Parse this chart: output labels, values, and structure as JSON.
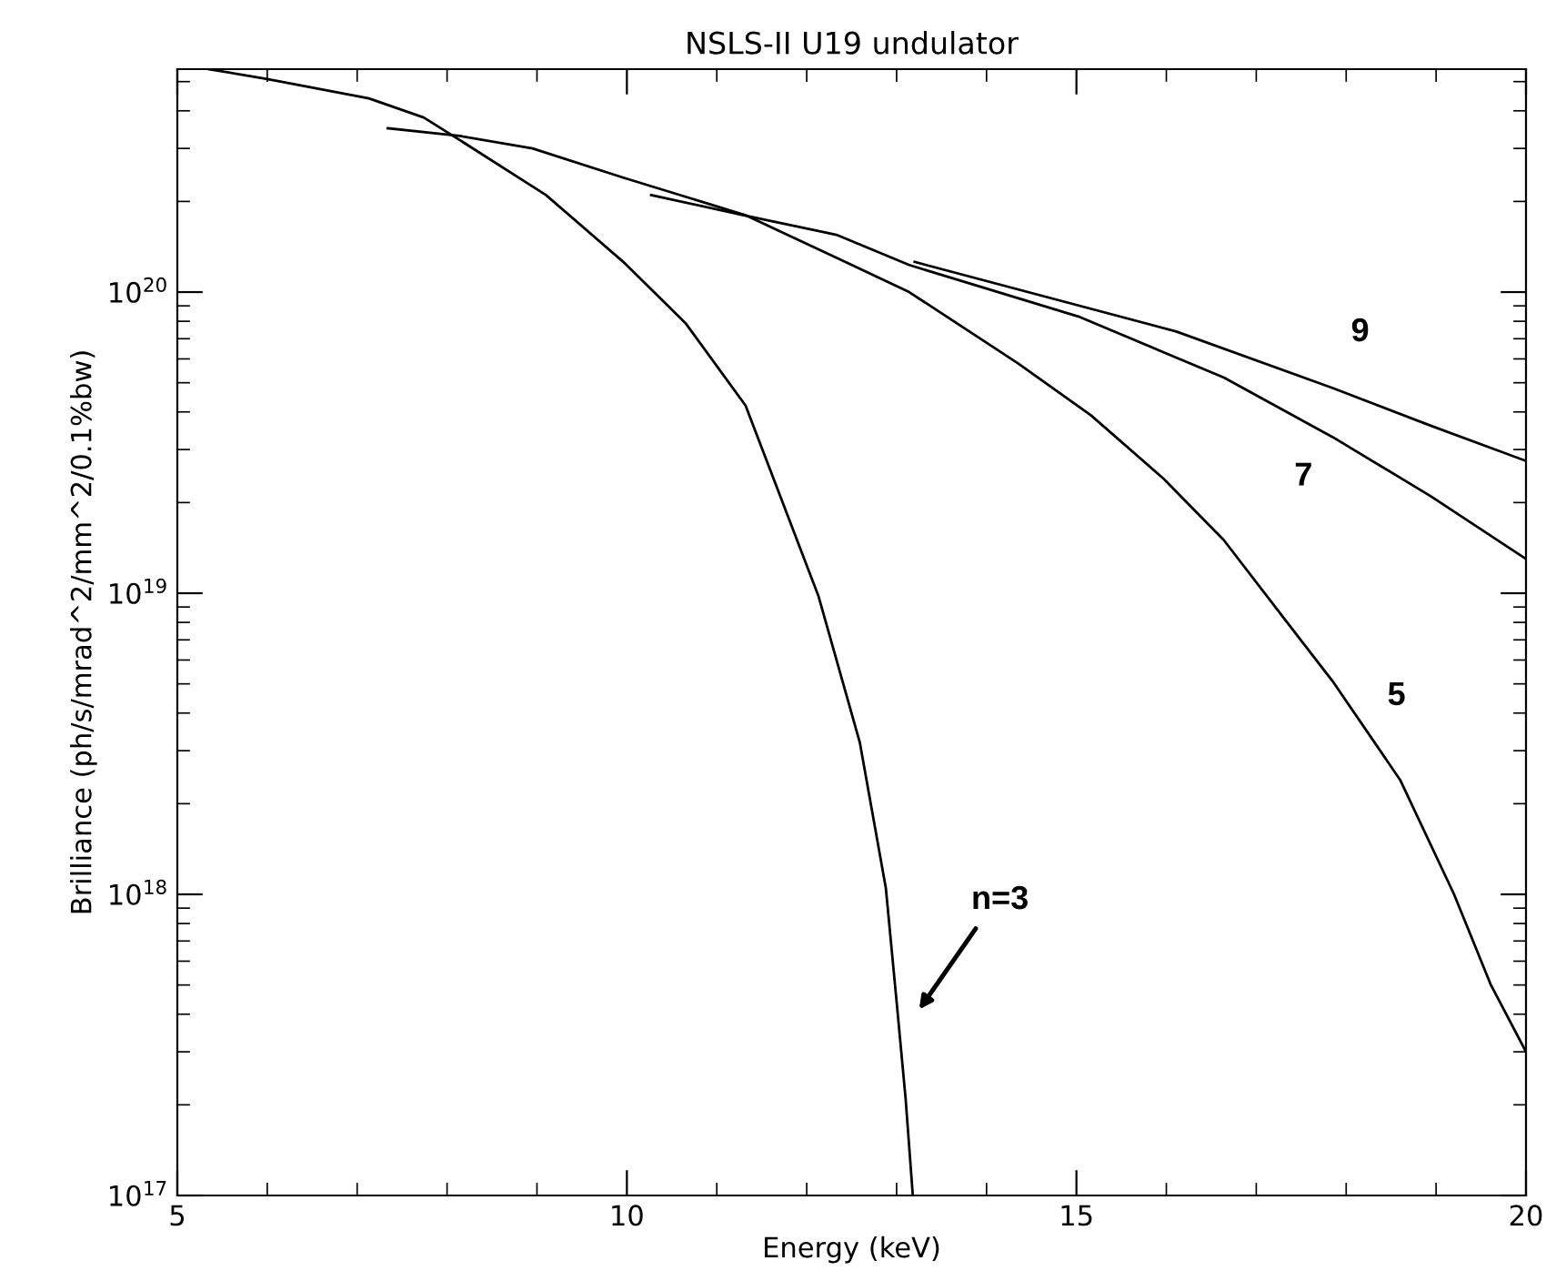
{
  "chart_data": {
    "type": "line",
    "title": "NSLS-II U19 undulator",
    "xlabel": "Energy (keV)",
    "ylabel": "Brilliance (ph/s/mrad^2/mm^2/0.1%bw)",
    "log": "y",
    "grid": false,
    "legend": false,
    "marker": "none",
    "line_style": "solid",
    "xlim": [
      5,
      20
    ],
    "xticks": [
      5,
      10,
      15,
      20
    ],
    "ylim": [
      1e+17,
      5.5e+20
    ],
    "yticks": [
      {
        "value": 1e+17,
        "label": "10$^{17}$"
      },
      {
        "value": 1e+18,
        "label": "10$^{18}$"
      },
      {
        "value": 1e+19,
        "label": "10$^{19}$"
      },
      {
        "value": 1e+20,
        "label": "10$^{20}$"
      }
    ],
    "series": [
      {
        "color": "#000000",
        "x": [
          5.35,
          6.0,
          7.13,
          7.74,
          8.14,
          9.1,
          9.96,
          10.65,
          11.32,
          12.13,
          12.59,
          12.88,
          13.0,
          13.1,
          13.18
        ],
        "values": [
          5.5e+20,
          5.1e+20,
          4.4e+20,
          3.8e+20,
          3.2e+20,
          2.1e+20,
          1.26e+20,
          7.9e+19,
          4.2e+19,
          9.8e+18,
          3.2e+18,
          1.05e+18,
          4.4e+17,
          2.1e+17,
          1e+17
        ]
      },
      {
        "color": "#000000",
        "x": [
          7.34,
          8.14,
          8.95,
          9.96,
          11.32,
          12.33,
          13.14,
          14.35,
          15.16,
          15.97,
          16.64,
          17.33,
          17.85,
          18.6,
          19.2,
          19.61,
          20
        ],
        "values": [
          3.5e+20,
          3.3e+20,
          3e+20,
          2.4e+20,
          1.8e+20,
          1.3e+20,
          1e+20,
          5.8e+19,
          3.9e+19,
          2.4e+19,
          1.5e+19,
          8.1e+18,
          5.1e+18,
          2.4e+18,
          1e+18,
          5e+17,
          3e+17
        ]
      },
      {
        "color": "#000000",
        "x": [
          10.27,
          11.3,
          12.33,
          13.14,
          15.02,
          16.64,
          17.85,
          18.94,
          20
        ],
        "values": [
          2.1e+20,
          1.8e+20,
          1.55e+20,
          1.23e+20,
          8.3e+19,
          5.2e+19,
          3.3e+19,
          2.1e+19,
          1.3e+19
        ]
      },
      {
        "color": "#000000",
        "x": [
          13.2,
          16.11,
          17.85,
          18.94,
          20
        ],
        "values": [
          1.26e+20,
          7.4e+19,
          4.8e+19,
          3.6e+19,
          2.75e+19
        ]
      }
    ],
    "annotations": [
      "9",
      "7",
      "5",
      "n=3"
    ]
  }
}
